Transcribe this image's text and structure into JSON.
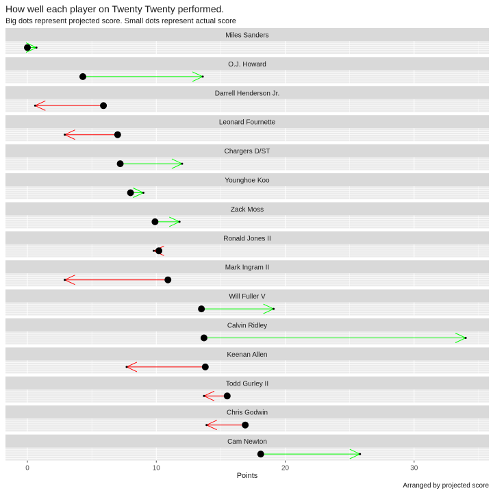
{
  "chart_data": {
    "type": "dot-arrow",
    "title": "How well each player on Twenty Twenty performed.",
    "subtitle": "Big dots represent projected score.  Small dots represent actual score",
    "xlabel": "Points",
    "caption": "Arranged by projected score",
    "xlim": [
      -1.7,
      35.8
    ],
    "xticks": [
      0,
      10,
      20,
      30
    ],
    "grid": true,
    "colors": {
      "improved": "#00ff00",
      "declined": "#ff0000",
      "dot": "#000000",
      "strip": "#d9d9d9",
      "panel": "#ebebeb"
    },
    "players": [
      {
        "name": "Miles Sanders",
        "projected": 0.0,
        "actual": 0.7
      },
      {
        "name": "O.J. Howard",
        "projected": 4.3,
        "actual": 13.6
      },
      {
        "name": "Darrell Henderson Jr.",
        "projected": 5.9,
        "actual": 0.6
      },
      {
        "name": "Leonard Fournette",
        "projected": 7.0,
        "actual": 2.9
      },
      {
        "name": "Chargers D/ST",
        "projected": 7.2,
        "actual": 12.0
      },
      {
        "name": "Younghoe Koo",
        "projected": 8.0,
        "actual": 9.0
      },
      {
        "name": "Zack Moss",
        "projected": 9.9,
        "actual": 11.8
      },
      {
        "name": "Ronald Jones II",
        "projected": 10.2,
        "actual": 9.8
      },
      {
        "name": "Mark Ingram II",
        "projected": 10.9,
        "actual": 2.9
      },
      {
        "name": "Will Fuller V",
        "projected": 13.5,
        "actual": 19.1
      },
      {
        "name": "Calvin Ridley",
        "projected": 13.7,
        "actual": 34.0
      },
      {
        "name": "Keenan Allen",
        "projected": 13.8,
        "actual": 7.7
      },
      {
        "name": "Todd Gurley II",
        "projected": 15.5,
        "actual": 13.7
      },
      {
        "name": "Chris Godwin",
        "projected": 16.9,
        "actual": 13.9
      },
      {
        "name": "Cam Newton",
        "projected": 18.1,
        "actual": 25.8
      }
    ]
  }
}
